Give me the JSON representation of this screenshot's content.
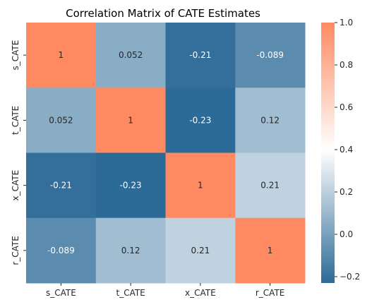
{
  "chart_data": {
    "type": "heatmap",
    "title": "Correlation Matrix of CATE Estimates",
    "xlabel": "",
    "ylabel": "",
    "x_categories": [
      "s_CATE",
      "t_CATE",
      "x_CATE",
      "r_CATE"
    ],
    "y_categories": [
      "s_CATE",
      "t_CATE",
      "x_CATE",
      "r_CATE"
    ],
    "values": [
      [
        1,
        0.052,
        -0.21,
        -0.089
      ],
      [
        0.052,
        1,
        -0.23,
        0.12
      ],
      [
        -0.21,
        -0.23,
        1,
        0.21
      ],
      [
        -0.089,
        0.12,
        0.21,
        1
      ]
    ],
    "annotations": [
      [
        "1",
        "0.052",
        "-0.21",
        "-0.089"
      ],
      [
        "0.052",
        "1",
        "-0.23",
        "0.12"
      ],
      [
        "-0.21",
        "-0.23",
        "1",
        "0.21"
      ],
      [
        "-0.089",
        "0.12",
        "0.21",
        "1"
      ]
    ],
    "colorbar": {
      "vmin": -0.23,
      "vmax": 1,
      "ticks": [
        1.0,
        0.8,
        0.6,
        0.4,
        0.2,
        0.0,
        -0.2
      ],
      "tick_labels": [
        "1.0",
        "0.8",
        "0.6",
        "0.4",
        "0.2",
        "0.0",
        "−0.2"
      ],
      "colormap": "diverging blue-white-orange",
      "low_color": "#2c6a97",
      "mid_color": "#ffffff",
      "high_color": "#ff8a62"
    },
    "legend": "colorbar-right",
    "grid": false
  }
}
